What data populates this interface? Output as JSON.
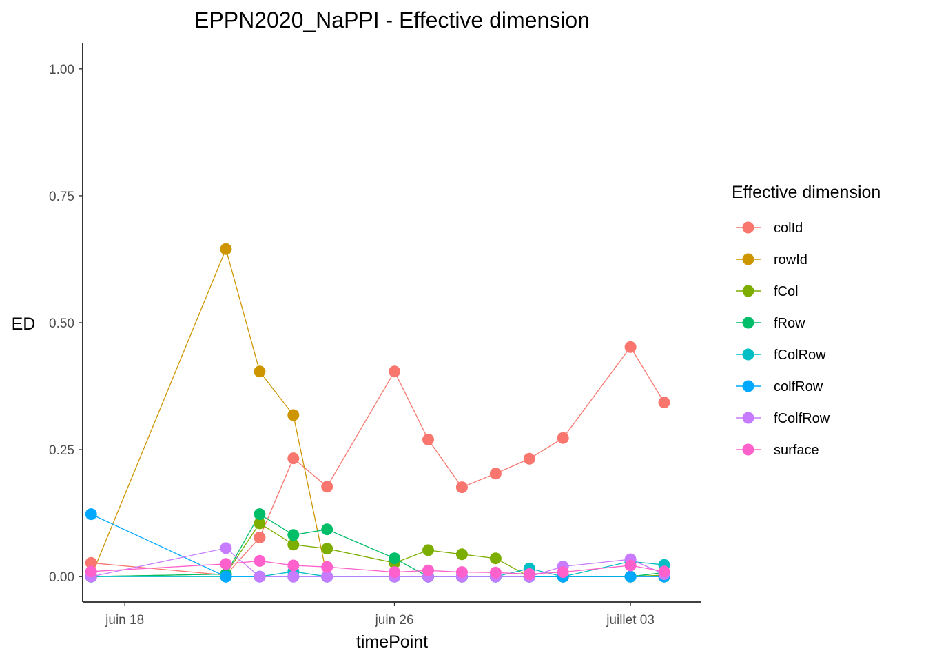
{
  "chart_data": {
    "type": "line",
    "title": "EPPN2020_NaPPI - Effective dimension",
    "xlabel": "timePoint",
    "ylabel": "ED",
    "x_axis_kind": "date",
    "x_dates": [
      "2020-06-17",
      "2020-06-21",
      "2020-06-22",
      "2020-06-23",
      "2020-06-24",
      "2020-06-26",
      "2020-06-27",
      "2020-06-28",
      "2020-06-29",
      "2020-06-30",
      "2020-07-01",
      "2020-07-03",
      "2020-07-04"
    ],
    "xlim": [
      "2020-06-16T18:00",
      "2020-07-05T02:00"
    ],
    "x_ticks": [
      {
        "date": "2020-06-18",
        "label": "juin 18"
      },
      {
        "date": "2020-06-26",
        "label": "juin 26"
      },
      {
        "date": "2020-07-03",
        "label": "juillet 03"
      }
    ],
    "ylim": [
      -0.05,
      1.05
    ],
    "y_ticks": [
      {
        "value": 0.0,
        "label": "0.00"
      },
      {
        "value": 0.25,
        "label": "0.25"
      },
      {
        "value": 0.5,
        "label": "0.50"
      },
      {
        "value": 0.75,
        "label": "0.75"
      },
      {
        "value": 1.0,
        "label": "1.00"
      }
    ],
    "grid": false,
    "legend": {
      "title": "Effective dimension",
      "placement": "right"
    },
    "series": [
      {
        "name": "colId",
        "color": "#F8766D",
        "values": [
          0.027,
          0.003,
          0.077,
          0.233,
          0.177,
          0.404,
          0.27,
          0.176,
          0.203,
          0.232,
          0.273,
          0.452,
          0.343
        ]
      },
      {
        "name": "rowId",
        "color": "#CD9600",
        "values": [
          0.0,
          0.645,
          0.404,
          0.318,
          0.0,
          0.0,
          0.0,
          0.0,
          0.0,
          0.0,
          0.0,
          0.0,
          0.0
        ]
      },
      {
        "name": "fCol",
        "color": "#7CAE00",
        "values": [
          0.0,
          0.005,
          0.105,
          0.063,
          0.055,
          0.027,
          0.052,
          0.044,
          0.036,
          0.0,
          0.0,
          0.0,
          0.003
        ]
      },
      {
        "name": "fRow",
        "color": "#00BE67",
        "values": [
          0.0,
          0.005,
          0.123,
          0.082,
          0.093,
          0.036,
          0.0,
          0.0,
          0.0,
          0.0,
          0.0,
          0.0,
          0.008
        ]
      },
      {
        "name": "fColRow",
        "color": "#00BFC4",
        "values": [
          0.0,
          0.0,
          0.0,
          0.01,
          0.0,
          0.0,
          0.0,
          0.0,
          0.0,
          0.016,
          0.0,
          0.03,
          0.023
        ]
      },
      {
        "name": "colfRow",
        "color": "#00A9FF",
        "values": [
          0.123,
          0.0,
          0.0,
          0.0,
          0.0,
          0.0,
          0.0,
          0.0,
          0.0,
          0.0,
          0.0,
          0.0,
          0.0
        ]
      },
      {
        "name": "fColfRow",
        "color": "#C77CFF",
        "values": [
          0.0,
          0.056,
          0.0,
          0.0,
          0.0,
          0.0,
          0.0,
          0.0,
          0.0,
          0.0,
          0.02,
          0.034,
          0.005
        ]
      },
      {
        "name": "surface",
        "color": "#FF61CC",
        "values": [
          0.01,
          0.025,
          0.031,
          0.022,
          0.019,
          0.009,
          0.012,
          0.009,
          0.008,
          0.005,
          0.009,
          0.022,
          0.01
        ]
      }
    ]
  }
}
